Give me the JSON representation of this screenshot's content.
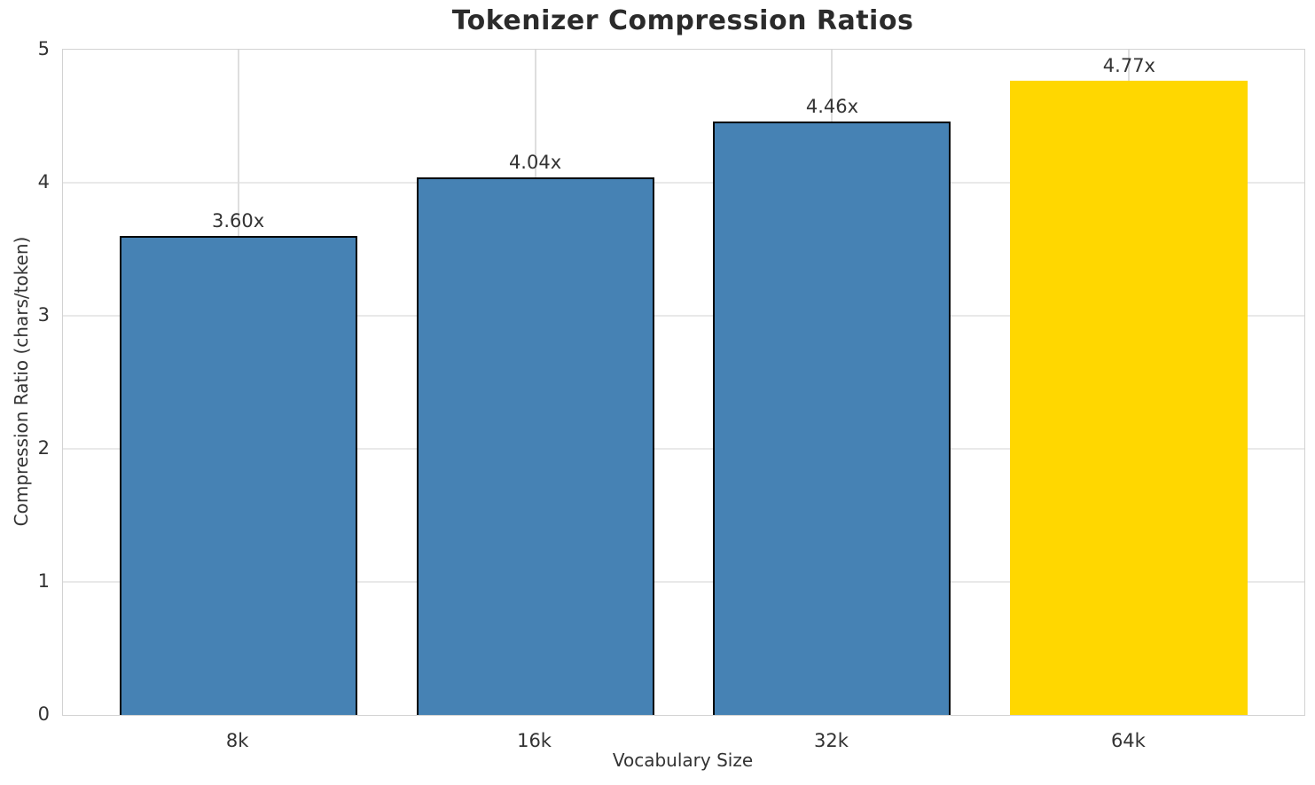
{
  "chart_data": {
    "type": "bar",
    "title": "Tokenizer Compression Ratios",
    "xlabel": "Vocabulary Size",
    "ylabel": "Compression Ratio (chars/token)",
    "categories": [
      "8k",
      "16k",
      "32k",
      "64k"
    ],
    "values": [
      3.6,
      4.04,
      4.46,
      4.77
    ],
    "bar_labels": [
      "3.60x",
      "4.04x",
      "4.46x",
      "4.77x"
    ],
    "ylim": [
      0,
      5
    ],
    "yticks": [
      0,
      1,
      2,
      3,
      4,
      5
    ],
    "ytick_labels": [
      "0",
      "1",
      "2",
      "3",
      "4",
      "5"
    ],
    "grid": true,
    "legend": false,
    "bar_colors": [
      "#4682B4",
      "#4682B4",
      "#4682B4",
      "#FFD700"
    ],
    "bar_edge_colors": [
      "#000000",
      "#000000",
      "#000000",
      "none"
    ],
    "highlight_index": 3,
    "highlight_color": "#FFD700",
    "base_color": "#4682B4"
  }
}
